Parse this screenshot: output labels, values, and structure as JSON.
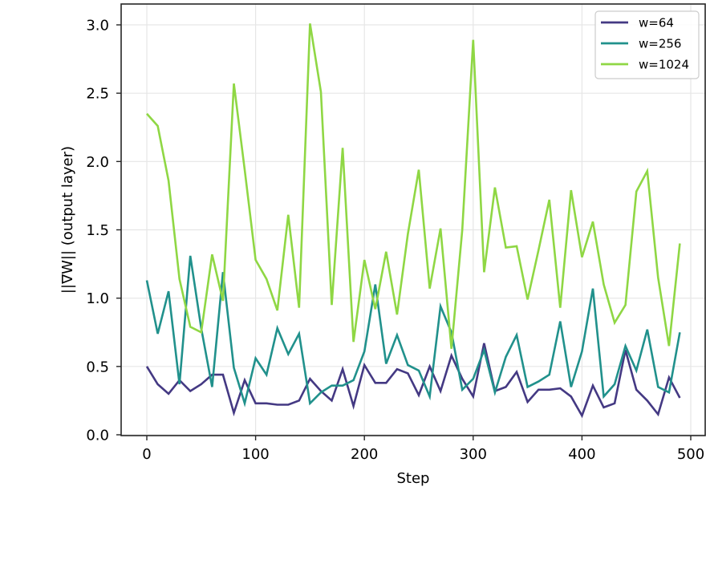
{
  "chart_data": {
    "type": "line",
    "title": "",
    "xlabel": "Step",
    "ylabel": "||∇W|| (output layer)",
    "xlim": [
      -25,
      515
    ],
    "ylim": [
      0.0,
      3.15
    ],
    "xticks": [
      0,
      100,
      200,
      300,
      400,
      500
    ],
    "yticks": [
      0.0,
      0.5,
      1.0,
      1.5,
      2.0,
      2.5,
      3.0
    ],
    "xtick_labels": [
      "0",
      "100",
      "200",
      "300",
      "400",
      "500"
    ],
    "ytick_labels": [
      "0.0",
      "0.5",
      "1.0",
      "1.5",
      "2.0",
      "2.5",
      "3.0"
    ],
    "grid": true,
    "legend_position": "upper right",
    "x": [
      0,
      10,
      20,
      30,
      40,
      50,
      60,
      70,
      80,
      90,
      100,
      110,
      120,
      130,
      140,
      150,
      160,
      170,
      180,
      190,
      200,
      210,
      220,
      230,
      240,
      250,
      260,
      270,
      280,
      290,
      300,
      310,
      320,
      330,
      340,
      350,
      360,
      370,
      380,
      390,
      400,
      410,
      420,
      430,
      440,
      450,
      460,
      470,
      480,
      490
    ],
    "series": [
      {
        "name": "w=64",
        "color": "#443983",
        "values": [
          0.5,
          0.37,
          0.3,
          0.4,
          0.32,
          0.37,
          0.44,
          0.44,
          0.16,
          0.4,
          0.23,
          0.23,
          0.22,
          0.22,
          0.25,
          0.41,
          0.32,
          0.25,
          0.48,
          0.21,
          0.51,
          0.38,
          0.38,
          0.48,
          0.45,
          0.29,
          0.5,
          0.32,
          0.58,
          0.41,
          0.28,
          0.67,
          0.32,
          0.35,
          0.46,
          0.24,
          0.33,
          0.33,
          0.34,
          0.28,
          0.14,
          0.36,
          0.2,
          0.23,
          0.62,
          0.33,
          0.25,
          0.15,
          0.42,
          0.27
        ]
      },
      {
        "name": "w=256",
        "color": "#21918c",
        "values": [
          1.13,
          0.74,
          1.05,
          0.37,
          1.31,
          0.78,
          0.35,
          1.19,
          0.49,
          0.23,
          0.56,
          0.44,
          0.78,
          0.59,
          0.74,
          0.23,
          0.31,
          0.36,
          0.36,
          0.4,
          0.61,
          1.1,
          0.52,
          0.73,
          0.51,
          0.47,
          0.28,
          0.94,
          0.75,
          0.33,
          0.41,
          0.62,
          0.31,
          0.57,
          0.73,
          0.35,
          0.39,
          0.44,
          0.83,
          0.35,
          0.61,
          1.07,
          0.28,
          0.37,
          0.65,
          0.47,
          0.77,
          0.35,
          0.31,
          0.75
        ]
      },
      {
        "name": "w=1024",
        "color": "#8fd744",
        "values": [
          2.35,
          2.26,
          1.86,
          1.14,
          0.79,
          0.75,
          1.32,
          0.98,
          2.57,
          1.94,
          1.28,
          1.14,
          0.91,
          1.61,
          0.93,
          3.01,
          2.51,
          0.95,
          2.1,
          0.68,
          1.28,
          0.92,
          1.34,
          0.88,
          1.47,
          1.94,
          1.07,
          1.51,
          0.63,
          1.5,
          2.89,
          1.19,
          1.81,
          1.37,
          1.38,
          0.99,
          1.35,
          1.72,
          0.93,
          1.79,
          1.3,
          1.56,
          1.1,
          0.82,
          0.95,
          1.78,
          1.93,
          1.15,
          0.65,
          1.4
        ]
      }
    ]
  }
}
